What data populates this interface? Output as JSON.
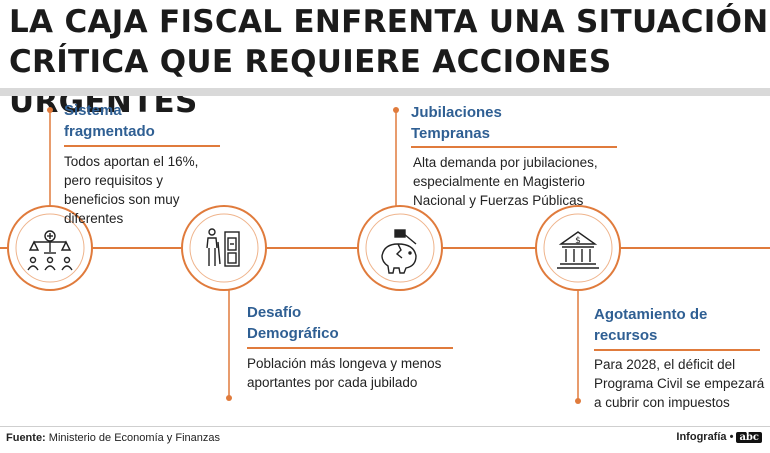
{
  "title": {
    "line1": "LA CAJA FISCAL ENFRENTA UNA SITUACIÓN",
    "line2": "CRÍTICA QUE REQUIERE ACCIONES URGENTES"
  },
  "items": [
    {
      "heading1": "Sistema",
      "heading2": "fragmentado",
      "body": [
        "Todos aportan el 16%,",
        "pero requisitos y",
        "beneficios son muy",
        "diferentes"
      ],
      "icon": "scales-people-icon"
    },
    {
      "heading1": "Desafío",
      "heading2": "Demográfico",
      "body": [
        "Población más longeva y menos",
        "aportantes por cada jubilado"
      ],
      "icon": "elderly-door-icon"
    },
    {
      "heading1": "Jubilaciones",
      "heading2": "Tempranas",
      "body": [
        "Alta demanda por jubilaciones,",
        "especialmente en Magisterio",
        "Nacional y Fuerzas Públicas"
      ],
      "icon": "broken-piggy-bank-icon"
    },
    {
      "heading1": "Agotamiento de",
      "heading2": "recursos",
      "body": [
        "Para 2028, el déficit del",
        "Programa Civil se empezará",
        "a cubrir con impuestos"
      ],
      "icon": "bank-dollar-icon"
    }
  ],
  "footer": {
    "source_label": "Fuente:",
    "source_text": "Ministerio de Economía y Finanzas",
    "credit": "Infografía •",
    "logo": "abc"
  },
  "colors": {
    "accent": "#e07b3c",
    "heading": "#2f5f93",
    "text": "#222222"
  }
}
